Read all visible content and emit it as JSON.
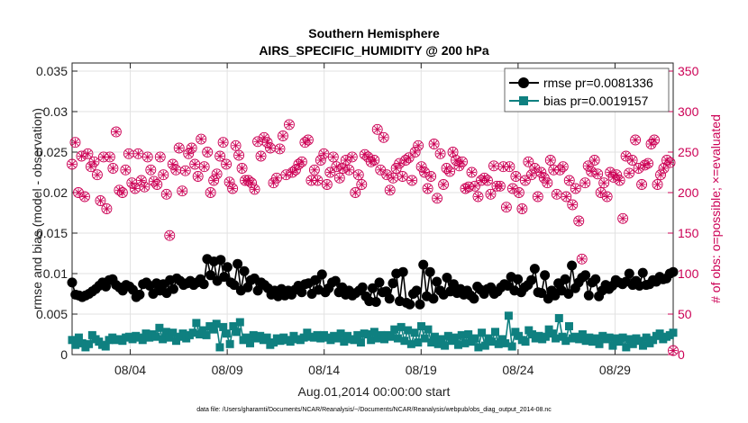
{
  "chart_data": {
    "type": "line",
    "title": "Southern Hemisphere",
    "subtitle": "AIRS_SPECIFIC_HUMIDITY @ 200 hPa",
    "xlabel": "Aug.01,2014 00:00:00 start",
    "ylabel_left": "rmse and bias (model - observation)",
    "ylabel_right": "# of obs: o=possible; ×=evaluated",
    "footnote": "data file: /Users/gharamti/Documents/NCAR/Reanalysis/~/Documents/NCAR/Reanalysis/webpub/obs_diag_output_2014-08.nc",
    "x_ticks": [
      "08/04",
      "08/09",
      "08/14",
      "08/19",
      "08/24",
      "08/29"
    ],
    "x_tick_values": [
      4,
      9,
      14,
      19,
      24,
      29
    ],
    "xlim": [
      1.0,
      32.0
    ],
    "ylim_left": [
      0,
      0.036
    ],
    "y_ticks_left": [
      "0",
      "0.005",
      "0.01",
      "0.015",
      "0.02",
      "0.025",
      "0.03",
      "0.035"
    ],
    "ylim_right": [
      0,
      360
    ],
    "y_ticks_right": [
      "0",
      "50",
      "100",
      "150",
      "200",
      "250",
      "300",
      "350"
    ],
    "grid": true,
    "legend_position": "top-right",
    "colors": {
      "rmse": "#000000",
      "bias": "#0f8080",
      "obs": "#cc0055"
    },
    "series": [
      {
        "name": "rmse pr=0.0081336",
        "axis": "left",
        "values": [
          0.0089,
          0.0074,
          0.0073,
          0.0071,
          0.0073,
          0.0075,
          0.0078,
          0.0081,
          0.0085,
          0.0089,
          0.0084,
          0.0092,
          0.0093,
          0.0086,
          0.0083,
          0.0079,
          0.0086,
          0.0084,
          0.008,
          0.0071,
          0.0074,
          0.0087,
          0.0089,
          0.0085,
          0.0075,
          0.0088,
          0.0079,
          0.0087,
          0.0076,
          0.0092,
          0.0081,
          0.0094,
          0.0091,
          0.0086,
          0.0088,
          0.0091,
          0.0086,
          0.0089,
          0.0093,
          0.0087,
          0.0118,
          0.0098,
          0.0115,
          0.0091,
          0.0117,
          0.0096,
          0.0108,
          0.0089,
          0.0086,
          0.0112,
          0.0079,
          0.0103,
          0.0083,
          0.0092,
          0.0094,
          0.0079,
          0.0089,
          0.0086,
          0.0082,
          0.0074,
          0.0079,
          0.0072,
          0.0081,
          0.0073,
          0.0079,
          0.0074,
          0.008,
          0.0085,
          0.0077,
          0.0087,
          0.0088,
          0.0075,
          0.0092,
          0.008,
          0.0099,
          0.0077,
          0.0082,
          0.0089,
          0.0091,
          0.0077,
          0.0083,
          0.0074,
          0.0079,
          0.0073,
          0.0076,
          0.0079,
          0.0083,
          0.0072,
          0.0066,
          0.0082,
          0.0065,
          0.0089,
          0.0077,
          0.0078,
          0.0069,
          0.0088,
          0.01,
          0.0066,
          0.0102,
          0.0064,
          0.0062,
          0.0075,
          0.0079,
          0.0062,
          0.0111,
          0.0072,
          0.0102,
          0.0069,
          0.009,
          0.0079,
          0.0074,
          0.0095,
          0.0078,
          0.0087,
          0.0076,
          0.0081,
          0.0074,
          0.0079,
          0.0073,
          0.0069,
          0.0084,
          0.008,
          0.0075,
          0.0081,
          0.0083,
          0.0075,
          0.0078,
          0.0083,
          0.0087,
          0.0085,
          0.0096,
          0.0079,
          0.0093,
          0.0077,
          0.0083,
          0.0086,
          0.0092,
          0.0106,
          0.0077,
          0.0076,
          0.0098,
          0.0069,
          0.0079,
          0.0073,
          0.0088,
          0.0079,
          0.0093,
          0.0075,
          0.011,
          0.0082,
          0.0089,
          0.0095,
          0.0098,
          0.0073,
          0.0089,
          0.0093,
          0.0072,
          0.0079,
          0.0086,
          0.0081,
          0.0085,
          0.0092,
          0.0089,
          0.0087,
          0.009,
          0.01,
          0.0086,
          0.0091,
          0.0085,
          0.0101,
          0.0086,
          0.0087,
          0.0092,
          0.009,
          0.0096,
          0.0093,
          0.0094,
          0.01,
          0.0102
        ]
      },
      {
        "name": "bias pr=0.0019157",
        "axis": "left",
        "values": [
          0.0018,
          0.0012,
          0.0021,
          0.0014,
          0.0009,
          0.0013,
          0.0024,
          0.0019,
          0.0016,
          0.0012,
          0.001,
          0.0018,
          0.0021,
          0.0018,
          0.0019,
          0.0017,
          0.0021,
          0.0022,
          0.0019,
          0.0023,
          0.0021,
          0.0018,
          0.0026,
          0.0021,
          0.0025,
          0.0022,
          0.0033,
          0.0019,
          0.0028,
          0.0021,
          0.0027,
          0.0017,
          0.0022,
          0.0026,
          0.002,
          0.0024,
          0.0027,
          0.0039,
          0.0025,
          0.003,
          0.0024,
          0.0035,
          0.0031,
          0.0038,
          0.0009,
          0.0034,
          0.0026,
          0.0013,
          0.0035,
          0.0028,
          0.004,
          0.0018,
          0.0021,
          0.0014,
          0.0024,
          0.002,
          0.0023,
          0.0018,
          0.0021,
          0.0012,
          0.0015,
          0.002,
          0.0017,
          0.0021,
          0.0018,
          0.0016,
          0.0023,
          0.0019,
          0.0018,
          0.0021,
          0.0027,
          0.0022,
          0.0021,
          0.0024,
          0.002,
          0.0024,
          0.0021,
          0.0018,
          0.0023,
          0.002,
          0.0026,
          0.0016,
          0.0023,
          0.0019,
          0.0018,
          0.0024,
          0.0015,
          0.0026,
          0.0025,
          0.0018,
          0.0028,
          0.002,
          0.0024,
          0.0019,
          0.0024,
          0.0022,
          0.0031,
          0.002,
          0.0034,
          0.0017,
          0.003,
          0.0013,
          0.0027,
          0.0015,
          0.0035,
          0.002,
          0.0031,
          0.0015,
          0.0022,
          0.0013,
          0.0019,
          0.0011,
          0.0023,
          0.0017,
          0.0021,
          0.0012,
          0.0024,
          0.0014,
          0.0025,
          0.0016,
          0.002,
          0.0009,
          0.0027,
          0.0011,
          0.002,
          0.0016,
          0.0028,
          0.0013,
          0.0019,
          0.0014,
          0.0048,
          0.001,
          0.0028,
          0.0023,
          0.0018,
          0.0016,
          0.003,
          0.0025,
          0.002,
          0.0023,
          0.0019,
          0.0022,
          0.0031,
          0.0026,
          0.002,
          0.0045,
          0.0022,
          0.0017,
          0.0035,
          0.002,
          0.0022,
          0.0019,
          0.0025,
          0.0017,
          0.0021,
          0.0016,
          0.002,
          0.0013,
          0.0023,
          0.0019,
          0.0021,
          0.0011,
          0.002,
          0.0016,
          0.0021,
          0.0009,
          0.0019,
          0.0013,
          0.002,
          0.0017,
          0.0011,
          0.0021,
          0.0014,
          0.0018,
          0.0023,
          0.0026,
          0.0019,
          0.0022,
          0.0024,
          0.0027
        ]
      },
      {
        "name": "obs possible/evaluated",
        "axis": "right",
        "values": [
          235,
          262,
          200,
          245,
          195,
          248,
          232,
          238,
          222,
          190,
          244,
          180,
          244,
          230,
          275,
          203,
          200,
          228,
          248,
          212,
          205,
          248,
          215,
          207,
          244,
          228,
          214,
          210,
          244,
          222,
          198,
          147,
          235,
          228,
          255,
          202,
          227,
          248,
          255,
          235,
          220,
          266,
          232,
          250,
          200,
          215,
          223,
          245,
          262,
          235,
          213,
          205,
          258,
          246,
          230,
          215,
          215,
          212,
          204,
          263,
          245,
          268,
          262,
          255,
          212,
          218,
          254,
          270,
          222,
          284,
          225,
          228,
          235,
          238,
          262,
          265,
          215,
          228,
          215,
          240,
          248,
          210,
          225,
          244,
          232,
          218,
          230,
          240,
          228,
          244,
          200,
          222,
          210,
          247,
          244,
          238,
          240,
          278,
          228,
          268,
          222,
          203,
          218,
          230,
          236,
          220,
          240,
          243,
          215,
          250,
          258,
          232,
          225,
          205,
          220,
          260,
          193,
          248,
          210,
          230,
          226,
          250,
          240,
          233,
          238,
          205,
          207,
          225,
          208,
          195,
          215,
          218,
          215,
          198,
          233,
          208,
          208,
          232,
          182,
          232,
          205,
          220,
          200,
          180,
          215,
          238,
          222,
          230,
          195,
          225,
          218,
          212,
          240,
          228,
          198,
          228,
          232,
          195,
          215,
          185,
          205,
          165,
          118,
          212,
          233,
          226,
          240,
          223,
          200,
          212,
          195,
          225,
          219,
          222,
          215,
          168,
          245,
          224,
          240,
          265,
          230,
          210,
          234,
          236,
          260,
          265,
          210,
          222,
          230,
          240,
          237,
          5
        ]
      }
    ]
  }
}
